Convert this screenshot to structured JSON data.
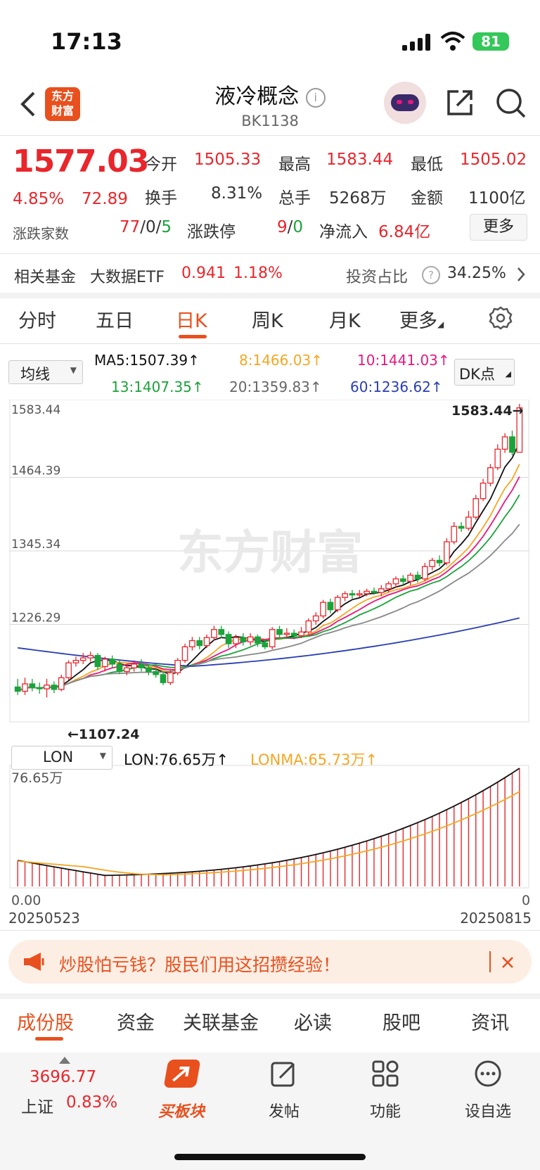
{
  "status_bar": {
    "time": "17:13",
    "battery": "81"
  },
  "header": {
    "title": "液冷概念",
    "code": "BK1138",
    "logo_line1": "东方",
    "logo_line2": "财富"
  },
  "quote": {
    "price": "1577.03",
    "change_pct": "4.85%",
    "change": "72.89",
    "open_label": "今开",
    "open": "1505.33",
    "high_label": "最高",
    "high": "1583.44",
    "low_label": "最低",
    "low": "1505.02",
    "turnover_label": "换手",
    "turnover": "8.31%",
    "volume_label": "总手",
    "volume": "5268万",
    "amount_label": "金额",
    "amount": "1100亿",
    "breadth_label": "涨跌家数",
    "breadth_up": "77",
    "breadth_flat": "0",
    "breadth_down": "5",
    "sep": "/",
    "limit_label": "涨跌停",
    "limit_up": "9",
    "limit_down": "0",
    "inflow_label": "净流入",
    "inflow": "6.84亿",
    "more_label": "更多"
  },
  "fund": {
    "label": "相关基金",
    "name": "大数据ETF",
    "price": "0.941",
    "pct": "1.18%",
    "ratio_label": "投资占比",
    "ratio": "34.25%"
  },
  "chart_tabs": [
    "分时",
    "五日",
    "日K",
    "周K",
    "月K",
    "更多"
  ],
  "ma_legend": {
    "selector": "均线",
    "ma5": "MA5:1507.39↑",
    "ma8": "8:1466.03↑",
    "ma10": "10:1441.03↑",
    "ma13": "13:1407.35↑",
    "ma20": "20:1359.83↑",
    "ma60": "60:1236.62↑",
    "dk": "DK点"
  },
  "watermark": "东方财富",
  "chart_data": {
    "type": "candlestick",
    "y_ticks": [
      "1583.44",
      "1464.39",
      "1345.34",
      "1226.29",
      "1107.24"
    ],
    "ylim": [
      1107.24,
      1583.44
    ],
    "high_label": "1583.44→",
    "low_label": "←1107.24",
    "start_date": "20250523",
    "end_date": "20250815",
    "candles": [
      [
        1125,
        1118,
        1138,
        1112
      ],
      [
        1118,
        1130,
        1140,
        1112
      ],
      [
        1130,
        1124,
        1138,
        1118
      ],
      [
        1124,
        1122,
        1132,
        1114
      ],
      [
        1122,
        1128,
        1138,
        1108
      ],
      [
        1128,
        1121,
        1134,
        1115
      ],
      [
        1121,
        1140,
        1145,
        1118
      ],
      [
        1140,
        1164,
        1168,
        1136
      ],
      [
        1164,
        1168,
        1174,
        1158
      ],
      [
        1168,
        1172,
        1180,
        1162
      ],
      [
        1172,
        1176,
        1182,
        1166
      ],
      [
        1176,
        1158,
        1180,
        1152
      ],
      [
        1158,
        1170,
        1174,
        1150
      ],
      [
        1170,
        1162,
        1176,
        1156
      ],
      [
        1162,
        1150,
        1168,
        1146
      ],
      [
        1150,
        1156,
        1162,
        1144
      ],
      [
        1156,
        1162,
        1168,
        1150
      ],
      [
        1162,
        1156,
        1170,
        1150
      ],
      [
        1156,
        1150,
        1162,
        1144
      ],
      [
        1150,
        1145,
        1156,
        1140
      ],
      [
        1145,
        1132,
        1150,
        1128
      ],
      [
        1132,
        1148,
        1152,
        1128
      ],
      [
        1148,
        1168,
        1172,
        1144
      ],
      [
        1168,
        1190,
        1195,
        1164
      ],
      [
        1190,
        1200,
        1206,
        1184
      ],
      [
        1200,
        1192,
        1206,
        1186
      ],
      [
        1192,
        1205,
        1210,
        1188
      ],
      [
        1205,
        1218,
        1224,
        1200
      ],
      [
        1218,
        1210,
        1224,
        1204
      ],
      [
        1210,
        1195,
        1215,
        1188
      ],
      [
        1195,
        1205,
        1210,
        1188
      ],
      [
        1205,
        1198,
        1212,
        1192
      ],
      [
        1198,
        1206,
        1212,
        1192
      ],
      [
        1206,
        1196,
        1210,
        1190
      ],
      [
        1196,
        1190,
        1202,
        1186
      ],
      [
        1190,
        1218,
        1222,
        1186
      ],
      [
        1218,
        1210,
        1224,
        1204
      ],
      [
        1210,
        1212,
        1220,
        1204
      ],
      [
        1212,
        1208,
        1218,
        1202
      ],
      [
        1208,
        1214,
        1222,
        1204
      ],
      [
        1214,
        1232,
        1236,
        1210
      ],
      [
        1232,
        1240,
        1246,
        1226
      ],
      [
        1240,
        1262,
        1266,
        1236
      ],
      [
        1262,
        1250,
        1268,
        1244
      ],
      [
        1250,
        1270,
        1274,
        1246
      ],
      [
        1270,
        1276,
        1280,
        1264
      ],
      [
        1276,
        1274,
        1282,
        1268
      ],
      [
        1274,
        1276,
        1282,
        1270
      ],
      [
        1276,
        1280,
        1284,
        1272
      ],
      [
        1280,
        1278,
        1286,
        1274
      ],
      [
        1278,
        1284,
        1290,
        1272
      ],
      [
        1284,
        1292,
        1296,
        1278
      ],
      [
        1292,
        1300,
        1304,
        1286
      ],
      [
        1300,
        1296,
        1306,
        1290
      ],
      [
        1296,
        1306,
        1310,
        1290
      ],
      [
        1306,
        1300,
        1312,
        1294
      ],
      [
        1300,
        1320,
        1326,
        1296
      ],
      [
        1320,
        1330,
        1334,
        1314
      ],
      [
        1330,
        1326,
        1338,
        1320
      ],
      [
        1326,
        1360,
        1366,
        1322
      ],
      [
        1360,
        1385,
        1392,
        1356
      ],
      [
        1385,
        1382,
        1392,
        1376
      ],
      [
        1382,
        1400,
        1410,
        1378
      ],
      [
        1400,
        1430,
        1436,
        1396
      ],
      [
        1430,
        1455,
        1462,
        1426
      ],
      [
        1455,
        1480,
        1486,
        1450
      ],
      [
        1480,
        1510,
        1518,
        1476
      ],
      [
        1510,
        1530,
        1536,
        1504
      ],
      [
        1530,
        1505,
        1540,
        1500
      ],
      [
        1505,
        1577.03,
        1583.44,
        1505.02
      ]
    ],
    "ma_series_colors": {
      "ma5": "#111111",
      "ma8": "#f5a623",
      "ma10": "#e6197d",
      "ma13": "#1aa33a",
      "ma20": "#888888",
      "ma60": "#2a3eb1"
    },
    "ma60_last": 1236.62,
    "lon_selector": "LON",
    "lon_value": "LON:76.65万↑",
    "lonma_value": "LONMA:65.73万↑",
    "lon_max_label": "76.65万",
    "lon_zero_label": "0.00",
    "lon_right_zero": "0",
    "lon_last": 76.65,
    "lonma_last": 65.73
  },
  "banner": {
    "text": "炒股怕亏钱？股民们用这招攒经验！"
  },
  "bottom_tabs": [
    "成份股",
    "资金",
    "关联基金",
    "必读",
    "股吧",
    "资讯"
  ],
  "nav": {
    "index_value": "3696.77",
    "index_name": "上证",
    "index_pct": "0.83%",
    "items": [
      "买板块",
      "发帖",
      "功能",
      "设自选"
    ]
  }
}
